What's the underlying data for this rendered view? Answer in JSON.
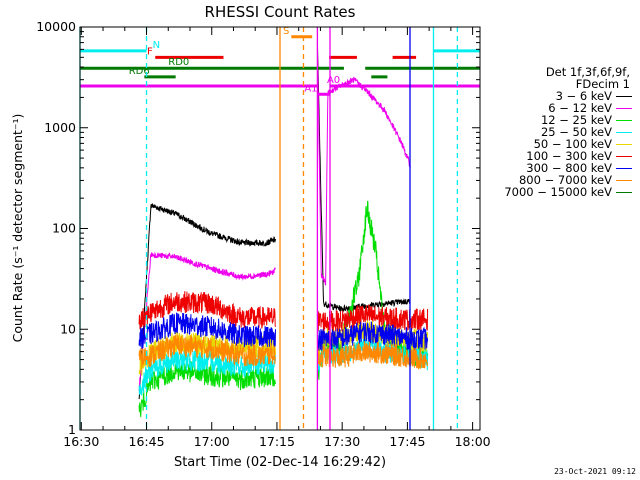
{
  "chart_data": {
    "type": "line",
    "title": "RHESSI Count Rates",
    "xlabel": "Start Time (02-Dec-14 16:29:42)",
    "ylabel": "Count Rate (s⁻¹ detector segment⁻¹)",
    "y_scale": "log",
    "ylim": [
      1,
      10000
    ],
    "xlim_minutes": [
      0,
      92
    ],
    "x_ticks": [
      {
        "label": "16:30",
        "min": 0.3
      },
      {
        "label": "16:45",
        "min": 15.3
      },
      {
        "label": "17:00",
        "min": 30.3
      },
      {
        "label": "17:15",
        "min": 45.3
      },
      {
        "label": "17:30",
        "min": 60.3
      },
      {
        "label": "17:45",
        "min": 75.3
      },
      {
        "label": "18:00",
        "min": 90.3
      }
    ],
    "y_ticks": [
      {
        "label": "1",
        "v": 1
      },
      {
        "label": "10",
        "v": 10
      },
      {
        "label": "100",
        "v": 100
      },
      {
        "label": "1000",
        "v": 1000
      },
      {
        "label": "10000",
        "v": 10000
      }
    ],
    "legend_header": [
      "Det 1f,3f,6f,9f,",
      "FDecim 1"
    ],
    "series": [
      {
        "name": "3 - 6 keV",
        "color": "#000000",
        "seg1": [
          [
            13.6,
            2
          ],
          [
            16.3,
            170
          ],
          [
            22,
            140
          ],
          [
            30,
            90
          ],
          [
            37,
            72
          ],
          [
            43,
            72
          ],
          [
            45,
            78
          ]
        ],
        "seg2": [
          [
            54.6,
            7000
          ],
          [
            56,
            18
          ],
          [
            60,
            16
          ],
          [
            65,
            17
          ],
          [
            70,
            18
          ],
          [
            76,
            19
          ]
        ]
      },
      {
        "name": "6 - 12 keV",
        "color": "#ee00ee",
        "seg1": [
          [
            13.6,
            2.5
          ],
          [
            16.3,
            55
          ],
          [
            22,
            52
          ],
          [
            30,
            40
          ],
          [
            37,
            33
          ],
          [
            43,
            35
          ],
          [
            45,
            38
          ]
        ],
        "seg2": [
          [
            54.6,
            6500
          ],
          [
            55.5,
            35
          ],
          [
            56.5,
            28
          ],
          [
            57,
            2200
          ],
          [
            59,
            2500
          ],
          [
            63,
            3000
          ],
          [
            66,
            2300
          ],
          [
            70,
            1500
          ],
          [
            74,
            700
          ],
          [
            76,
            420
          ]
        ]
      },
      {
        "name": "12 - 25 keV",
        "color": "#00dd00",
        "seg1": [
          [
            13.6,
            1.5
          ],
          [
            16.3,
            3
          ],
          [
            22,
            4
          ],
          [
            30,
            3.5
          ],
          [
            37,
            3.2
          ],
          [
            43,
            3.4
          ],
          [
            45,
            3.5
          ]
        ],
        "seg2": [
          [
            54.6,
            3
          ],
          [
            56,
            7
          ],
          [
            60,
            7
          ],
          [
            64,
            30
          ],
          [
            66,
            160
          ],
          [
            68,
            60
          ],
          [
            70,
            10
          ],
          [
            74,
            6
          ],
          [
            80,
            5
          ]
        ]
      },
      {
        "name": "25 - 50 keV",
        "color": "#00eeee",
        "seg1": [
          [
            13.6,
            2.5
          ],
          [
            16.3,
            4
          ],
          [
            22,
            5
          ],
          [
            30,
            4.8
          ],
          [
            37,
            4.2
          ],
          [
            43,
            4.6
          ],
          [
            45,
            4.7
          ]
        ],
        "seg2": [
          [
            54.6,
            4
          ],
          [
            56,
            6
          ],
          [
            60,
            5.5
          ],
          [
            65,
            7
          ],
          [
            70,
            6
          ],
          [
            76,
            5.5
          ],
          [
            80,
            5
          ]
        ]
      },
      {
        "name": "50 - 100 keV",
        "color": "#e8d800",
        "seg1": [
          [
            13.6,
            4
          ],
          [
            16.3,
            6
          ],
          [
            22,
            7.5
          ],
          [
            30,
            7
          ],
          [
            37,
            6.5
          ],
          [
            43,
            6.8
          ],
          [
            45,
            7
          ]
        ],
        "seg2": [
          [
            54.6,
            6
          ],
          [
            56,
            8
          ],
          [
            60,
            8.5
          ],
          [
            65,
            10
          ],
          [
            70,
            9
          ],
          [
            76,
            8
          ],
          [
            80,
            7.5
          ]
        ]
      },
      {
        "name": "100 - 300 keV",
        "color": "#ee0000",
        "seg1": [
          [
            13.6,
            12
          ],
          [
            16.3,
            15
          ],
          [
            22,
            19
          ],
          [
            30,
            18
          ],
          [
            37,
            13
          ],
          [
            43,
            13
          ],
          [
            45,
            13
          ]
        ],
        "seg2": [
          [
            54.6,
            12
          ],
          [
            56,
            12
          ],
          [
            60,
            12
          ],
          [
            65,
            14
          ],
          [
            70,
            13
          ],
          [
            76,
            12.5
          ],
          [
            80,
            12.5
          ]
        ]
      },
      {
        "name": "300 - 800 keV",
        "color": "#0000ee",
        "seg1": [
          [
            13.6,
            8
          ],
          [
            16.3,
            9
          ],
          [
            22,
            11.5
          ],
          [
            30,
            10.5
          ],
          [
            37,
            8.5
          ],
          [
            43,
            8.5
          ],
          [
            45,
            8.5
          ]
        ],
        "seg2": [
          [
            54.6,
            8
          ],
          [
            56,
            8
          ],
          [
            60,
            8
          ],
          [
            65,
            9.5
          ],
          [
            70,
            9
          ],
          [
            76,
            8
          ],
          [
            80,
            8
          ]
        ]
      },
      {
        "name": "800 - 7000 keV",
        "color": "#ff8800",
        "seg1": [
          [
            13.6,
            5
          ],
          [
            16.3,
            5.5
          ],
          [
            22,
            7
          ],
          [
            30,
            6.5
          ],
          [
            37,
            5.5
          ],
          [
            43,
            5.5
          ],
          [
            45,
            5.8
          ]
        ],
        "seg2": [
          [
            54.6,
            5
          ],
          [
            56,
            5.5
          ],
          [
            60,
            5.2
          ],
          [
            65,
            6
          ],
          [
            70,
            5.8
          ],
          [
            76,
            5.2
          ],
          [
            80,
            5
          ]
        ]
      },
      {
        "name": "7000 - 15000 keV",
        "color": "#007a00",
        "seg1": [],
        "seg2": []
      }
    ],
    "state_bars": [
      {
        "label": "N",
        "color": "#00eeee",
        "y": 5800,
        "segments": [
          [
            0,
            15.3
          ],
          [
            81.3,
            92
          ]
        ],
        "label_min": 16.7
      },
      {
        "label": "S",
        "color": "#ff8800",
        "y": 8000,
        "segments": [
          [
            48.6,
            53.4
          ]
        ],
        "label_min": 46.7
      },
      {
        "label": "F",
        "color": "#ee0000",
        "y": 5000,
        "segments": [
          [
            17.3,
            33
          ],
          [
            57.3,
            63.7
          ],
          [
            71.9,
            77.3
          ]
        ],
        "label_min": 15.4
      },
      {
        "label": "RD0",
        "color": "#007a00",
        "y": 3900,
        "segments": [
          [
            0,
            60.7
          ],
          [
            65.6,
            92
          ]
        ],
        "label_min": 20.3
      },
      {
        "label": "RD6",
        "color": "#007a00",
        "y": 3200,
        "segments": [
          [
            14.8,
            22
          ],
          [
            67,
            70.7
          ]
        ],
        "label_min": 11.2
      },
      {
        "label": "A1",
        "color": "#ee00ee",
        "y": 2150,
        "segments": [
          [
            54.6,
            57.6
          ]
        ],
        "label_min": 51.6
      },
      {
        "label": "A0",
        "color": "#ee00ee",
        "y": 2600,
        "segments": [
          [
            0,
            54.6
          ],
          [
            57.6,
            92
          ]
        ],
        "label_min": 56.8
      }
    ],
    "vlines": [
      {
        "min": 0,
        "color": "#00eeee",
        "dashed": false
      },
      {
        "min": 15.3,
        "color": "#00eeee",
        "dashed": true
      },
      {
        "min": 46.0,
        "color": "#ff8800",
        "dashed": false
      },
      {
        "min": 51.4,
        "color": "#ff8800",
        "dashed": true
      },
      {
        "min": 54.6,
        "color": "#ee00ee",
        "dashed": false
      },
      {
        "min": 57.5,
        "color": "#ee00ee",
        "dashed": false
      },
      {
        "min": 75.9,
        "color": "#0000ee",
        "dashed": false
      },
      {
        "min": 81.3,
        "color": "#00eeee",
        "dashed": false
      },
      {
        "min": 86.8,
        "color": "#00eeee",
        "dashed": true
      }
    ],
    "grid": false,
    "legend_position": "right"
  },
  "stamp": "23-Oct-2021 09:12"
}
